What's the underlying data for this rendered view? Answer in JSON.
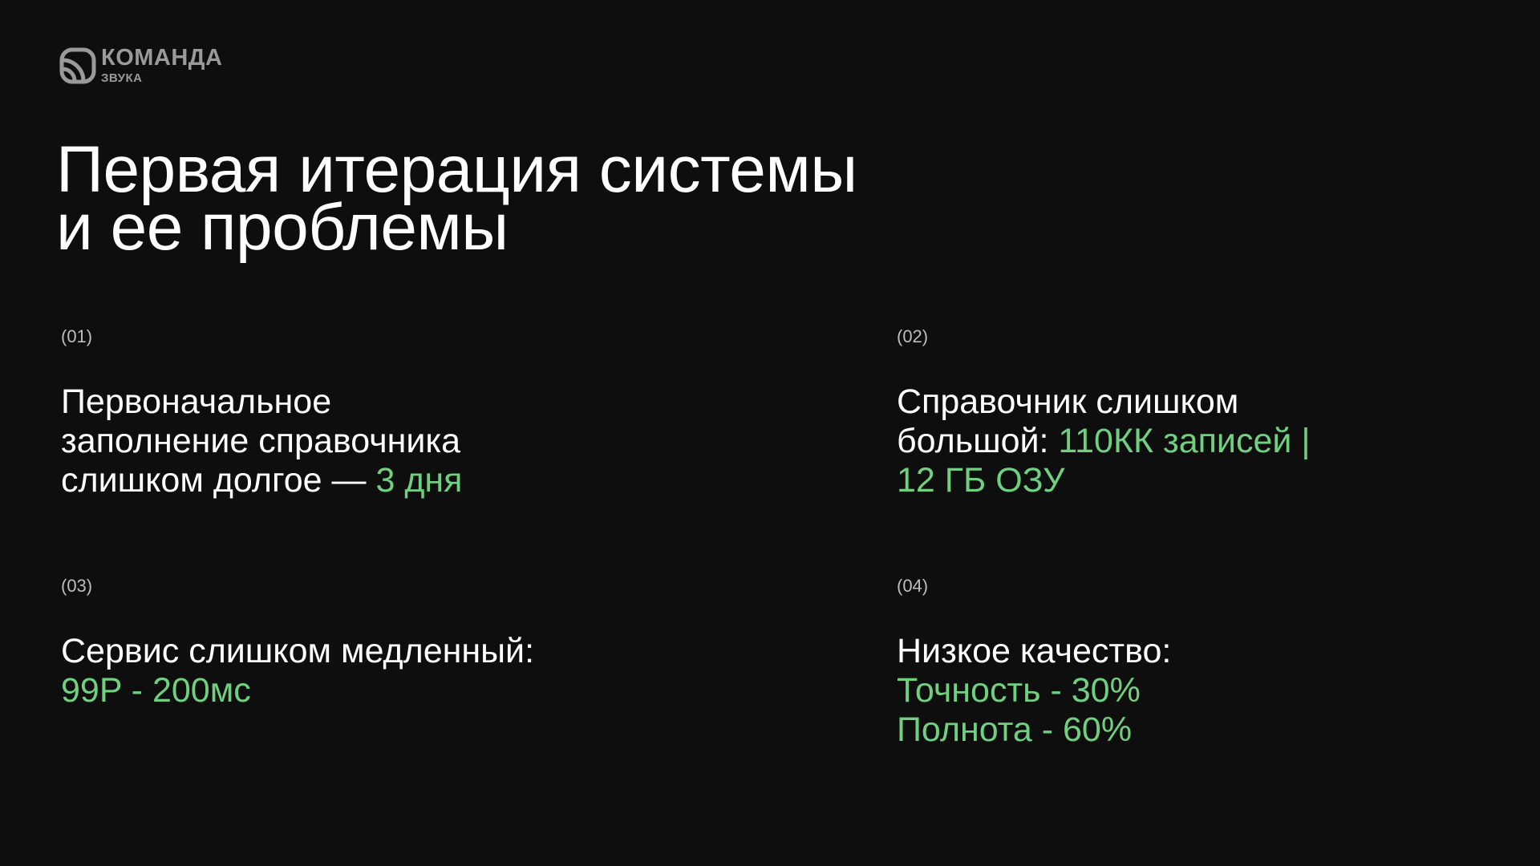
{
  "logo": {
    "main": "КОМАНДА",
    "sub": "ЗВУКА"
  },
  "title": {
    "line1": "Первая итерация системы",
    "line2": "и ее проблемы"
  },
  "colors": {
    "accent": "#6fd17f",
    "background": "#0e0e0e"
  },
  "items": [
    {
      "num": "(01)",
      "lines": [
        {
          "t": "Первоначальное"
        },
        {
          "t": "заполнение справочника"
        },
        {
          "t": "слишком долгое — ",
          "g": "3 дня"
        }
      ]
    },
    {
      "num": "(02)",
      "lines": [
        {
          "t": "Справочник слишком"
        },
        {
          "t": "большой: ",
          "g": "110КК записей |"
        },
        {
          "g": "12 ГБ ОЗУ"
        }
      ]
    },
    {
      "num": "(03)",
      "lines": [
        {
          "t": "Сервис слишком медленный:"
        },
        {
          "g": "99P - 200мс"
        }
      ]
    },
    {
      "num": "(04)",
      "lines": [
        {
          "t": "Низкое качество:"
        },
        {
          "g": "Точность - 30%"
        },
        {
          "g": "Полнота - 60%"
        }
      ]
    }
  ]
}
